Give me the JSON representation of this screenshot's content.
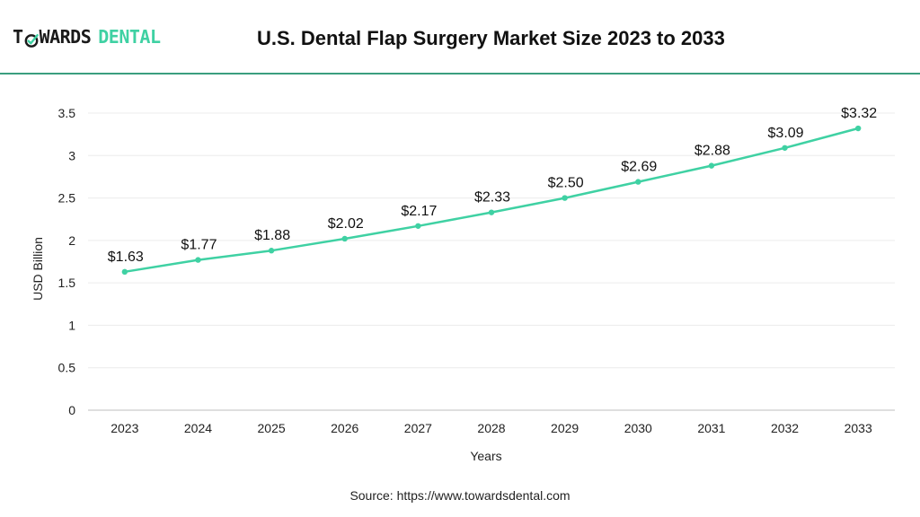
{
  "header": {
    "logo_part_a_1": "T",
    "logo_part_a_2": "WARDS",
    "logo_part_b": "DENTAL",
    "title": "U.S. Dental Flap Surgery Market Size 2023 to 2033"
  },
  "footer": {
    "source": "Source: https://www.towardsdental.com"
  },
  "colors": {
    "line": "#3fd1a3",
    "accent": "#3fd1a3",
    "divider": "#3a9e7f",
    "grid": "#ececec"
  },
  "chart_data": {
    "type": "line",
    "title": "U.S. Dental Flap Surgery Market Size 2023 to 2033",
    "xlabel": "Years",
    "ylabel": "USD Billion",
    "ylim": [
      0,
      3.5
    ],
    "yticks": [
      "0",
      "0.5",
      "1",
      "1.5",
      "2",
      "2.5",
      "3",
      "3.5"
    ],
    "yticks_values": [
      0,
      0.5,
      1,
      1.5,
      2,
      2.5,
      3,
      3.5
    ],
    "grid": true,
    "legend": "none",
    "categories": [
      "2023",
      "2024",
      "2025",
      "2026",
      "2027",
      "2028",
      "2029",
      "2030",
      "2031",
      "2032",
      "2033"
    ],
    "values": [
      1.63,
      1.77,
      1.88,
      2.02,
      2.17,
      2.33,
      2.5,
      2.69,
      2.88,
      3.09,
      3.32
    ],
    "data_labels": [
      "$1.63",
      "$1.77",
      "$1.88",
      "$2.02",
      "$2.17",
      "$2.33",
      "$2.50",
      "$2.69",
      "$2.88",
      "$3.09",
      "$3.32"
    ]
  }
}
